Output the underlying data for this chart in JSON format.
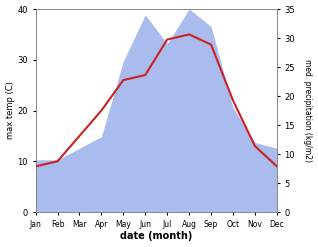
{
  "months": [
    "Jan",
    "Feb",
    "Mar",
    "Apr",
    "May",
    "Jun",
    "Jul",
    "Aug",
    "Sep",
    "Oct",
    "Nov",
    "Dec"
  ],
  "temp": [
    9,
    10,
    15,
    20,
    26,
    27,
    34,
    35,
    33,
    22,
    13,
    9
  ],
  "precip": [
    9,
    9,
    11,
    13,
    26,
    34,
    29,
    35,
    32,
    18,
    12,
    11
  ],
  "temp_color": "#cc2222",
  "precip_color": "#aabbee",
  "ylabel_left": "max temp (C)",
  "ylabel_right": "med. precipitation (kg/m2)",
  "xlabel": "date (month)",
  "ylim_left": [
    0,
    40
  ],
  "ylim_right": [
    0,
    35
  ],
  "yticks_left": [
    0,
    10,
    20,
    30,
    40
  ],
  "yticks_right": [
    0,
    5,
    10,
    15,
    20,
    25,
    30,
    35
  ]
}
